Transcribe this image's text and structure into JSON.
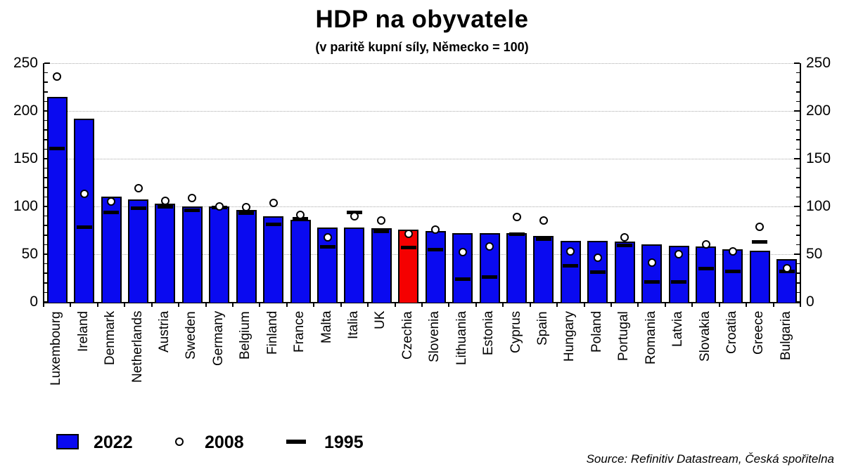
{
  "title": "HDP na obyvatele",
  "subtitle": "(v paritě kupní síly, Německo = 100)",
  "source": "Source: Refinitiv Datastream, Česká spořitelna",
  "legend": [
    {
      "label": "2022",
      "marker": "bar"
    },
    {
      "label": "2008",
      "marker": "circle"
    },
    {
      "label": "1995",
      "marker": "dash"
    }
  ],
  "colors": {
    "bar_fill": "#0a0af0",
    "highlight_fill": "#f50000",
    "marker_fill": "#ffffff",
    "marker_stroke": "#000000",
    "grid": "#aaaaaa",
    "axis": "#000000"
  },
  "chart_data": {
    "type": "bar",
    "title": "HDP na obyvatele",
    "subtitle": "(v paritě kupní síly, Německo = 100)",
    "categories": [
      "Luxembourg",
      "Ireland",
      "Denmark",
      "Netherlands",
      "Austria",
      "Sweden",
      "Germany",
      "Belgium",
      "Finland",
      "France",
      "Malta",
      "Italia",
      "UK",
      "Czechia",
      "Slovenia",
      "Lithuania",
      "Estonia",
      "Cyprus",
      "Spain",
      "Hungary",
      "Poland",
      "Portugal",
      "Romania",
      "Latvia",
      "Slovakia",
      "Croatia",
      "Greece",
      "Bulgaria"
    ],
    "series": [
      {
        "name": "2022",
        "style": "bar",
        "values": [
          215,
          192,
          110,
          107,
          103,
          100,
          100,
          96,
          90,
          86,
          78,
          78,
          77,
          76,
          74,
          72,
          72,
          72,
          69,
          64,
          64,
          63,
          60,
          59,
          58,
          55,
          54,
          45
        ]
      },
      {
        "name": "2008",
        "style": "circle",
        "values": [
          236,
          113,
          105,
          119,
          106,
          109,
          100,
          99,
          104,
          91,
          68,
          90,
          85,
          71,
          76,
          52,
          58,
          89,
          85,
          53,
          46,
          68,
          41,
          50,
          60,
          53,
          79,
          35
        ]
      },
      {
        "name": "1995",
        "style": "dash",
        "values": [
          161,
          78,
          94,
          98,
          100,
          96,
          99,
          93,
          81,
          87,
          58,
          94,
          74,
          57,
          55,
          24,
          26,
          71,
          66,
          38,
          31,
          59,
          21,
          21,
          35,
          32,
          63,
          32
        ]
      }
    ],
    "highlight_category": "Czechia",
    "ylim": [
      0,
      250
    ],
    "yticks": [
      0,
      50,
      100,
      150,
      200,
      250
    ],
    "minor_tick_step": 10,
    "grid": "horizontal dotted at major ticks",
    "axis_sides": [
      "left",
      "right"
    ],
    "legend_position": "bottom-left"
  }
}
